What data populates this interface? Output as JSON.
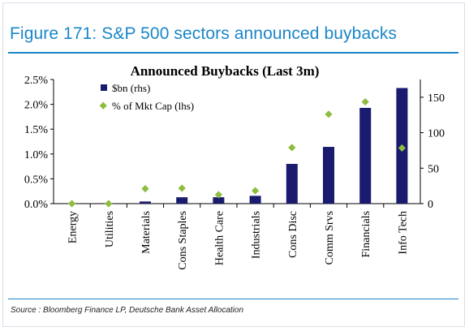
{
  "figure_title": "Figure 171: S&P 500 sectors announced buybacks",
  "source_note": "Source : Bloomberg Finance LP, Deutsche Bank Asset Allocation",
  "colors": {
    "accent": "#1a86c8",
    "bar": "#1a1a6e",
    "marker": "#8cbd3f"
  },
  "chart_data": {
    "type": "bar",
    "title": "Announced Buybacks (Last 3m)",
    "xlabel": "",
    "categories": [
      "Energy",
      "Utilities",
      "Materials",
      "Cons Staples",
      "Health Care",
      "Industrials",
      "Cons Disc",
      "Comm Srvs",
      "Financials",
      "Info Tech"
    ],
    "series": [
      {
        "name": "$bn (rhs)",
        "kind": "bar",
        "axis": "right",
        "values": [
          0,
          0,
          3,
          9,
          9,
          11,
          56,
          80,
          135,
          163
        ]
      },
      {
        "name": "% of Mkt Cap (lhs)",
        "kind": "scatter",
        "axis": "left",
        "values": [
          0.0,
          0.0,
          0.3,
          0.31,
          0.18,
          0.26,
          1.13,
          1.8,
          2.05,
          1.12
        ]
      }
    ],
    "y_left": {
      "ylim": [
        0,
        2.5
      ],
      "ticks": [
        "0.0%",
        "0.5%",
        "1.0%",
        "1.5%",
        "2.0%",
        "2.5%"
      ]
    },
    "y_right": {
      "ylim": [
        0,
        175
      ],
      "ticks": [
        "0",
        "50",
        "100",
        "150"
      ]
    },
    "legend_position": "top-left",
    "grid": false
  }
}
